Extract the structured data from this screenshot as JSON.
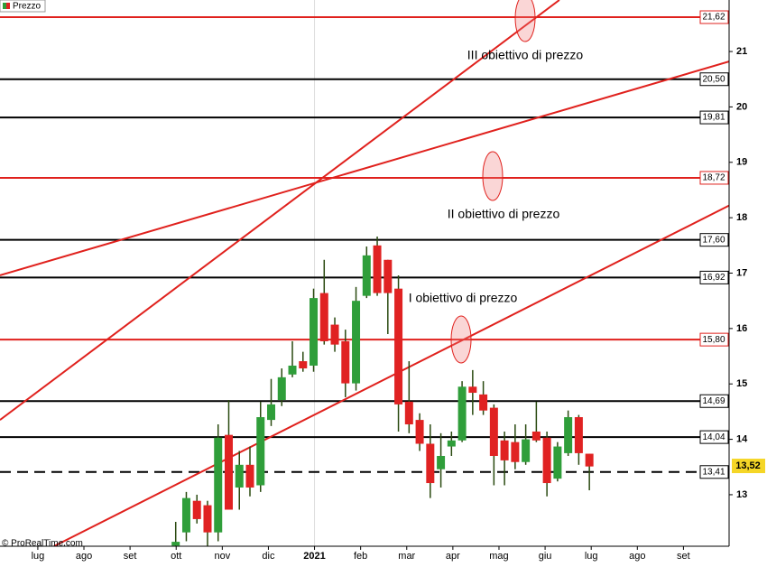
{
  "chart_data": {
    "type": "candlestick",
    "legend": "Prezzo",
    "source": "© ProRealTime.com",
    "up_color": "#2f9e3a",
    "down_color": "#e02222",
    "xlim": [
      -0.82,
      14.99
    ],
    "xticks": [
      {
        "value": 0,
        "label": "lug"
      },
      {
        "value": 1,
        "label": "ago"
      },
      {
        "value": 2,
        "label": "set"
      },
      {
        "value": 3,
        "label": "ott"
      },
      {
        "value": 4,
        "label": "nov"
      },
      {
        "value": 5,
        "label": "dic"
      },
      {
        "value": 6,
        "label": "2021"
      },
      {
        "value": 7,
        "label": "feb"
      },
      {
        "value": 8,
        "label": "mar"
      },
      {
        "value": 9,
        "label": "apr"
      },
      {
        "value": 10,
        "label": "mag"
      },
      {
        "value": 11,
        "label": "giu"
      },
      {
        "value": 12,
        "label": "lug"
      },
      {
        "value": 13,
        "label": "ago"
      },
      {
        "value": 14,
        "label": "set"
      }
    ],
    "ylim": [
      12.07,
      21.93
    ],
    "yticks": [
      13,
      14,
      15,
      16,
      17,
      18,
      19,
      20,
      21
    ],
    "x": [
      2.99,
      3.22,
      3.45,
      3.68,
      3.91,
      4.14,
      4.37,
      4.6,
      4.83,
      5.06,
      5.29,
      5.52,
      5.75,
      5.98,
      6.21,
      6.44,
      6.67,
      6.9,
      7.13,
      7.36,
      7.59,
      7.82,
      8.05,
      8.28,
      8.51,
      8.74,
      8.97,
      9.2,
      9.43,
      9.66,
      9.89,
      10.12,
      10.35,
      10.58,
      10.81,
      11.04,
      11.27,
      11.5,
      11.73,
      11.96
    ],
    "open": [
      12.08,
      12.32,
      12.89,
      12.81,
      12.32,
      14.08,
      13.13,
      13.54,
      13.17,
      14.35,
      14.71,
      15.17,
      15.41,
      15.33,
      16.64,
      16.07,
      15.77,
      15.01,
      16.59,
      17.5,
      17.24,
      16.72,
      14.68,
      14.35,
      13.92,
      13.46,
      13.87,
      13.98,
      14.95,
      14.81,
      14.57,
      13.98,
      13.95,
      13.59,
      14.14,
      14.03,
      13.29,
      13.75,
      14.4,
      13.74
    ],
    "close": [
      12.15,
      12.94,
      12.56,
      12.32,
      14.03,
      12.73,
      13.54,
      13.13,
      14.4,
      14.63,
      15.12,
      15.33,
      15.28,
      16.55,
      15.77,
      15.71,
      15.01,
      16.5,
      17.32,
      16.64,
      16.64,
      14.63,
      14.27,
      13.92,
      13.21,
      13.7,
      13.98,
      14.95,
      14.84,
      14.52,
      13.7,
      13.62,
      13.59,
      14.0,
      13.98,
      13.21,
      13.87,
      14.4,
      13.75,
      13.51
    ],
    "high": [
      12.51,
      13.05,
      13.0,
      12.89,
      14.27,
      14.71,
      13.79,
      13.87,
      14.68,
      15.09,
      15.28,
      15.77,
      15.58,
      16.72,
      17.24,
      16.2,
      15.98,
      16.75,
      17.48,
      17.66,
      17.24,
      16.96,
      15.41,
      14.47,
      14.27,
      14.11,
      14.14,
      15.05,
      15.25,
      15.05,
      14.63,
      14.14,
      14.27,
      14.27,
      14.68,
      14.14,
      13.95,
      14.52,
      14.44,
      13.74
    ],
    "low": [
      12.07,
      12.16,
      12.48,
      12.07,
      12.16,
      12.73,
      12.73,
      12.97,
      13.05,
      14.24,
      14.6,
      15.12,
      15.22,
      15.22,
      15.71,
      15.58,
      14.76,
      14.88,
      16.55,
      16.59,
      15.9,
      14.14,
      14.11,
      13.79,
      12.94,
      13.13,
      13.7,
      13.95,
      14.44,
      14.44,
      13.17,
      13.17,
      13.46,
      13.54,
      13.95,
      12.97,
      13.24,
      13.7,
      13.54,
      13.08
    ],
    "levels": [
      {
        "value": 21.62,
        "label": "21,62",
        "color": "#e0211d"
      },
      {
        "value": 20.5,
        "label": "20,50",
        "color": "#000000"
      },
      {
        "value": 19.81,
        "label": "19,81",
        "color": "#000000"
      },
      {
        "value": 18.72,
        "label": "18,72",
        "color": "#e0211d"
      },
      {
        "value": 17.6,
        "label": "17,60",
        "color": "#000000"
      },
      {
        "value": 16.92,
        "label": "16,92",
        "color": "#000000"
      },
      {
        "value": 15.8,
        "label": "15,80",
        "color": "#e0211d"
      },
      {
        "value": 14.69,
        "label": "14,69",
        "color": "#000000"
      },
      {
        "value": 14.04,
        "label": "14,04",
        "color": "#000000"
      },
      {
        "value": 13.41,
        "label": "13,41",
        "color": "#000000",
        "dashed": true
      }
    ],
    "last_price": {
      "value": 13.52,
      "label": "13,52"
    },
    "trendlines": [
      {
        "x": [
          -0.82,
          11.31
        ],
        "y": [
          14.35,
          21.93
        ],
        "color": "#e0211d"
      },
      {
        "x": [
          -0.82,
          14.99
        ],
        "y": [
          16.96,
          20.82
        ],
        "color": "#e0211d"
      },
      {
        "x": [
          0.35,
          14.99
        ],
        "y": [
          12.07,
          18.22
        ],
        "color": "#e0211d"
      }
    ],
    "annotations": [
      "III obiettivo di prezzo",
      "II obiettivo di prezzo",
      "I obiettivo di prezzo"
    ]
  }
}
